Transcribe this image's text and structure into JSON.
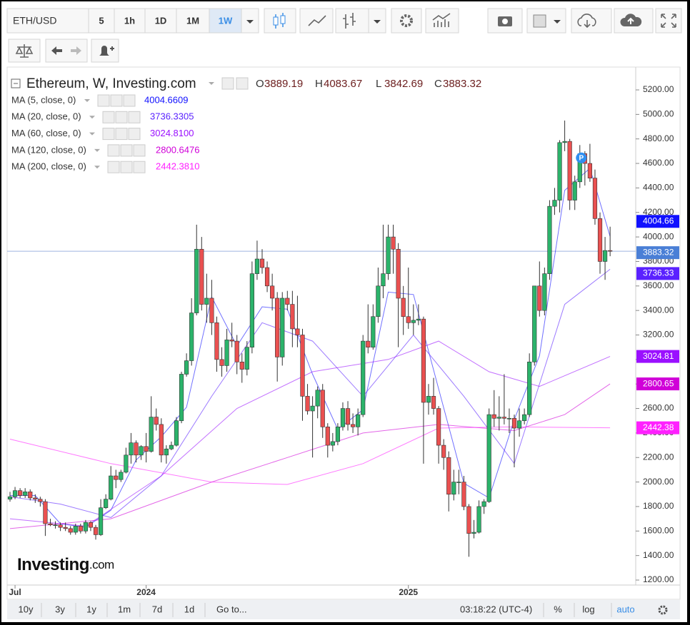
{
  "toolbar": {
    "symbol": "ETH/USD",
    "intervals": [
      "5",
      "1h",
      "1D",
      "1M",
      "1W"
    ],
    "active_interval": 4
  },
  "ranges": [
    "10y",
    "3y",
    "1y",
    "1m",
    "7d",
    "1d"
  ],
  "goto": "Go to...",
  "clock": "03:18:22 (UTC-4)",
  "scale_options": [
    "%",
    "log",
    "auto"
  ],
  "logo": {
    "main": "Investing",
    "suffix": ".com"
  },
  "chart_data": {
    "type": "candlestick",
    "title": "Ethereum, W, Investing.com",
    "ohlc_legend": [
      {
        "label": "O",
        "value": 3889.19
      },
      {
        "label": "H",
        "value": 4083.67
      },
      {
        "label": "L",
        "value": 3842.69
      },
      {
        "label": "C",
        "value": 3883.32
      }
    ],
    "up_color": "#2bb36a",
    "down_color": "#ea5050",
    "marker_label": "P",
    "marker_index": 113,
    "candles": [
      [
        1860,
        1920,
        1840,
        1880
      ],
      [
        1880,
        1960,
        1860,
        1930
      ],
      [
        1930,
        1950,
        1870,
        1890
      ],
      [
        1890,
        1950,
        1870,
        1920
      ],
      [
        1920,
        1940,
        1850,
        1870
      ],
      [
        1870,
        1900,
        1830,
        1860
      ],
      [
        1860,
        1880,
        1800,
        1840
      ],
      [
        1840,
        1860,
        1560,
        1660
      ],
      [
        1660,
        1700,
        1640,
        1650
      ],
      [
        1650,
        1680,
        1620,
        1650
      ],
      [
        1650,
        1670,
        1600,
        1630
      ],
      [
        1630,
        1670,
        1600,
        1620
      ],
      [
        1620,
        1640,
        1570,
        1590
      ],
      [
        1590,
        1660,
        1570,
        1640
      ],
      [
        1640,
        1660,
        1580,
        1600
      ],
      [
        1600,
        1690,
        1580,
        1670
      ],
      [
        1670,
        1680,
        1600,
        1630
      ],
      [
        1630,
        1650,
        1530,
        1570
      ],
      [
        1570,
        1860,
        1560,
        1790
      ],
      [
        1790,
        1900,
        1780,
        1860
      ],
      [
        1860,
        2130,
        1850,
        2050
      ],
      [
        2050,
        2100,
        1950,
        2020
      ],
      [
        2020,
        2100,
        2000,
        2080
      ],
      [
        2080,
        2280,
        2070,
        2220
      ],
      [
        2220,
        2400,
        2150,
        2320
      ],
      [
        2320,
        2340,
        2160,
        2220
      ],
      [
        2220,
        2300,
        2180,
        2290
      ],
      [
        2290,
        2400,
        2160,
        2250
      ],
      [
        2250,
        2700,
        2240,
        2530
      ],
      [
        2530,
        2600,
        2420,
        2470
      ],
      [
        2470,
        2520,
        2160,
        2220
      ],
      [
        2220,
        2300,
        2150,
        2270
      ],
      [
        2270,
        2330,
        2260,
        2300
      ],
      [
        2300,
        2530,
        2290,
        2500
      ],
      [
        2500,
        2900,
        2480,
        2880
      ],
      [
        2880,
        3050,
        2860,
        2990
      ],
      [
        2990,
        3500,
        2950,
        3380
      ],
      [
        3380,
        4100,
        3360,
        3900
      ],
      [
        3900,
        4000,
        3400,
        3450
      ],
      [
        3450,
        3700,
        3300,
        3500
      ],
      [
        3500,
        3650,
        3200,
        3300
      ],
      [
        3300,
        3350,
        2900,
        3000
      ],
      [
        3000,
        3100,
        2860,
        2950
      ],
      [
        2950,
        3250,
        2900,
        3160
      ],
      [
        3160,
        3300,
        3100,
        3150
      ],
      [
        3150,
        3200,
        2880,
        2980
      ],
      [
        2980,
        3050,
        2810,
        2920
      ],
      [
        2920,
        3150,
        2870,
        3100
      ],
      [
        3100,
        3800,
        3050,
        3700
      ],
      [
        3700,
        3970,
        3650,
        3820
      ],
      [
        3820,
        3900,
        3700,
        3750
      ],
      [
        3750,
        3800,
        3550,
        3600
      ],
      [
        3600,
        3700,
        3400,
        3500
      ],
      [
        3500,
        3550,
        2820,
        3020
      ],
      [
        3020,
        3550,
        2950,
        3500
      ],
      [
        3500,
        3560,
        3400,
        3450
      ],
      [
        3450,
        3560,
        3100,
        3250
      ],
      [
        3250,
        3520,
        3100,
        3200
      ],
      [
        3200,
        3250,
        2500,
        2700
      ],
      [
        2700,
        2800,
        2550,
        2580
      ],
      [
        2580,
        2700,
        2200,
        2620
      ],
      [
        2620,
        2780,
        2520,
        2750
      ],
      [
        2750,
        2800,
        2360,
        2450
      ],
      [
        2450,
        2480,
        2200,
        2300
      ],
      [
        2300,
        2400,
        2250,
        2330
      ],
      [
        2330,
        2480,
        2300,
        2450
      ],
      [
        2450,
        2650,
        2420,
        2600
      ],
      [
        2600,
        2660,
        2420,
        2470
      ],
      [
        2470,
        2560,
        2400,
        2450
      ],
      [
        2450,
        2600,
        2380,
        2550
      ],
      [
        2550,
        3200,
        2530,
        3150
      ],
      [
        3150,
        3450,
        3050,
        3100
      ],
      [
        3100,
        3450,
        3080,
        3350
      ],
      [
        3350,
        3750,
        3300,
        3600
      ],
      [
        3600,
        4100,
        3500,
        3700
      ],
      [
        3700,
        4100,
        3650,
        4000
      ],
      [
        4000,
        4100,
        3700,
        3900
      ],
      [
        3900,
        3950,
        3100,
        3500
      ],
      [
        3500,
        3600,
        3200,
        3350
      ],
      [
        3350,
        3750,
        3250,
        3300
      ],
      [
        3300,
        3450,
        3200,
        3320
      ],
      [
        3320,
        3450,
        3280,
        3330
      ],
      [
        3330,
        3350,
        2150,
        2650
      ],
      [
        2650,
        2800,
        2550,
        2700
      ],
      [
        2700,
        2850,
        2550,
        2600
      ],
      [
        2600,
        2620,
        2150,
        2300
      ],
      [
        2300,
        2350,
        2100,
        2200
      ],
      [
        2200,
        2250,
        1760,
        1900
      ],
      [
        1900,
        2100,
        1850,
        2000
      ],
      [
        2000,
        2100,
        1900,
        2000
      ],
      [
        2000,
        2050,
        1770,
        1800
      ],
      [
        1800,
        1820,
        1390,
        1580
      ],
      [
        1580,
        1690,
        1540,
        1590
      ],
      [
        1590,
        1850,
        1580,
        1800
      ],
      [
        1800,
        1860,
        1740,
        1840
      ],
      [
        1840,
        2600,
        1830,
        2550
      ],
      [
        2550,
        2750,
        2450,
        2520
      ],
      [
        2520,
        2700,
        2420,
        2530
      ],
      [
        2530,
        2880,
        2470,
        2520
      ],
      [
        2520,
        2600,
        2400,
        2520
      ],
      [
        2520,
        2550,
        2120,
        2440
      ],
      [
        2440,
        2600,
        2370,
        2500
      ],
      [
        2500,
        2600,
        2470,
        2550
      ],
      [
        2550,
        3050,
        2530,
        2980
      ],
      [
        2980,
        3600,
        2950,
        3600
      ],
      [
        3600,
        3800,
        3350,
        3400
      ],
      [
        3400,
        3750,
        3360,
        3700
      ],
      [
        3700,
        4300,
        3650,
        4250
      ],
      [
        4250,
        4400,
        4180,
        4300
      ],
      [
        4300,
        4790,
        4200,
        4770
      ],
      [
        4770,
        4950,
        4700,
        4780
      ],
      [
        4780,
        4800,
        4220,
        4300
      ],
      [
        4300,
        4500,
        4220,
        4450
      ],
      [
        4450,
        4750,
        4400,
        4680
      ],
      [
        4680,
        4700,
        4420,
        4600
      ],
      [
        4600,
        4760,
        4450,
        4480
      ],
      [
        4480,
        4550,
        4100,
        4150
      ],
      [
        4150,
        4200,
        3700,
        3800
      ],
      [
        3800,
        4000,
        3650,
        3889.19
      ],
      [
        3889.19,
        4083.67,
        3842.69,
        3883.32
      ]
    ],
    "indicators": [
      {
        "name": "MA (5, close, 0)",
        "legend_value": "4004.6609",
        "tag": "4004.66",
        "color": "#1010ff",
        "x": [
          0,
          5,
          10,
          15,
          20,
          25,
          30,
          35,
          40,
          45,
          50,
          55,
          60,
          65,
          70,
          75,
          80,
          85,
          90,
          95,
          100,
          105,
          110,
          115,
          119
        ],
        "values": [
          1890,
          1890,
          1660,
          1630,
          1770,
          2180,
          2370,
          2610,
          3510,
          3110,
          3430,
          3410,
          2880,
          2430,
          2590,
          3550,
          3530,
          2760,
          1990,
          1870,
          2510,
          3030,
          4380,
          4560,
          4004.66
        ]
      },
      {
        "name": "MA (20, close, 0)",
        "legend_value": "3736.3305",
        "tag": "3736.33",
        "color": "#5a22ff",
        "x": [
          0,
          10,
          20,
          30,
          40,
          50,
          60,
          70,
          80,
          90,
          100,
          110,
          119
        ],
        "values": [
          1880,
          1820,
          1710,
          2050,
          2700,
          3300,
          3150,
          2700,
          3200,
          2700,
          2150,
          3450,
          3736.33
        ]
      },
      {
        "name": "MA (60, close, 0)",
        "legend_value": "3024.8100",
        "tag": "3024.81",
        "color": "#9a10ff",
        "x": [
          0,
          15,
          30,
          45,
          60,
          75,
          85,
          95,
          105,
          119
        ],
        "values": [
          1700,
          1640,
          2050,
          2600,
          2900,
          3000,
          3150,
          2900,
          2780,
          3024.81
        ]
      },
      {
        "name": "MA (120, close, 0)",
        "legend_value": "2800.6476",
        "tag": "2800.65",
        "color": "#d000d8",
        "x": [
          0,
          20,
          40,
          55,
          70,
          85,
          100,
          110,
          119
        ],
        "values": [
          1620,
          1700,
          2000,
          2200,
          2400,
          2470,
          2420,
          2550,
          2800.65
        ]
      },
      {
        "name": "MA (200, close, 0)",
        "legend_value": "2442.3810",
        "tag": "2442.38",
        "color": "#ff20ff",
        "x": [
          0,
          20,
          40,
          55,
          70,
          85,
          100,
          119
        ],
        "values": [
          2350,
          2150,
          2000,
          1980,
          2150,
          2440,
          2450,
          2442.38
        ]
      }
    ],
    "ylim": [
      1200,
      5200
    ],
    "yticks": [
      {
        "value": 1200,
        "label": "1200.00"
      },
      {
        "value": 1400,
        "label": "1400.00"
      },
      {
        "value": 1600,
        "label": "1600.00"
      },
      {
        "value": 1800,
        "label": "1800.00"
      },
      {
        "value": 2000,
        "label": "2000.00"
      },
      {
        "value": 2200,
        "label": "2200.00"
      },
      {
        "value": 2400,
        "label": "2400.00"
      },
      {
        "value": 2600,
        "label": "2600.00"
      },
      {
        "value": 2800,
        "label": "2800.00"
      },
      {
        "value": 3000,
        "label": "3000.00"
      },
      {
        "value": 3200,
        "label": "3200.00"
      },
      {
        "value": 3400,
        "label": "3400.00"
      },
      {
        "value": 3600,
        "label": "3600.00"
      },
      {
        "value": 3800,
        "label": "3800.00"
      },
      {
        "value": 4000,
        "label": "4000.00"
      },
      {
        "value": 4200,
        "label": "4200.00"
      },
      {
        "value": 4400,
        "label": "4400.00"
      },
      {
        "value": 4600,
        "label": "4600.00"
      },
      {
        "value": 4800,
        "label": "4800.00"
      },
      {
        "value": 5000,
        "label": "5000.00"
      },
      {
        "value": 5200,
        "label": "5200.00"
      }
    ],
    "xticks": [
      {
        "value": 1,
        "label": "Jul"
      },
      {
        "value": 27,
        "label": "2024"
      },
      {
        "value": 79,
        "label": "2025"
      }
    ]
  }
}
